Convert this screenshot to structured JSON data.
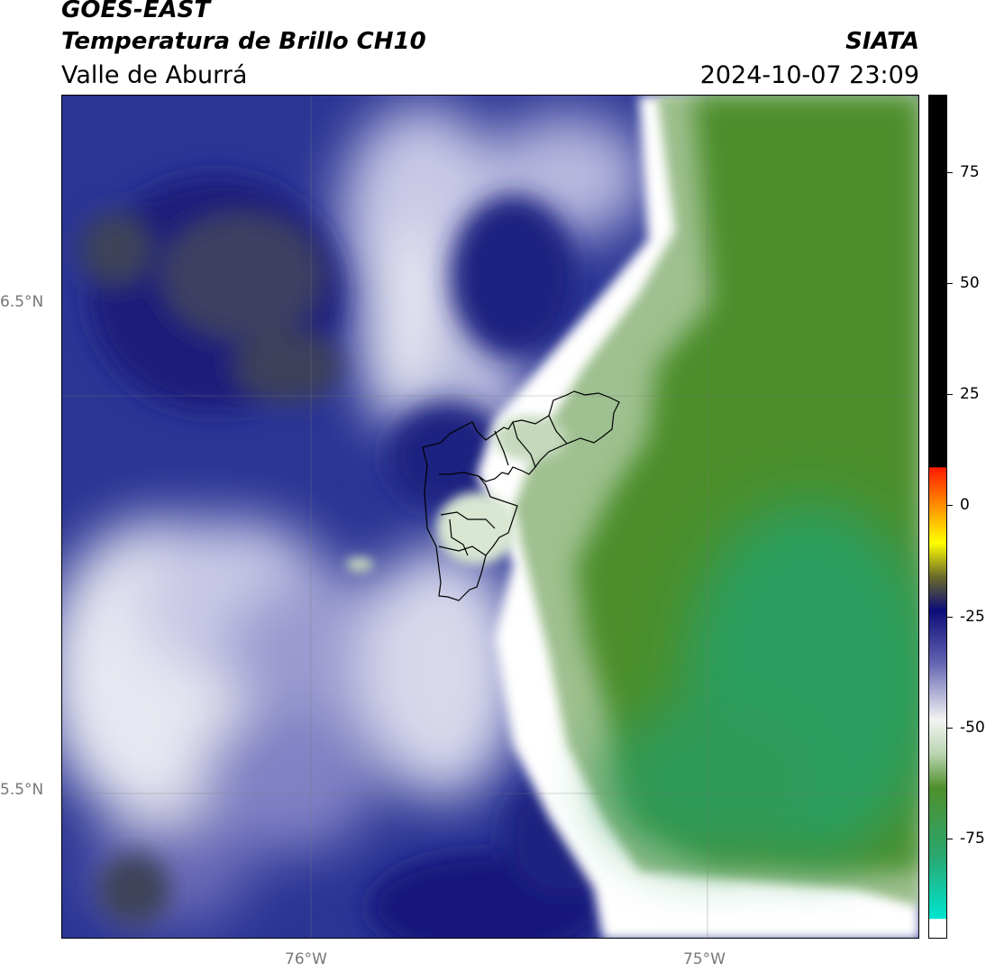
{
  "header": {
    "line1": "GOES-EAST",
    "line2": "Temperatura de Brillo CH10",
    "line3": "Valle de Aburrá",
    "org": "SIATA",
    "datetime": "2024-10-07 23:09"
  },
  "map": {
    "lat_labels": [
      "6.5°N",
      "5.5°N"
    ],
    "lon_labels": [
      "76°W",
      "75°W"
    ]
  },
  "colorbar": {
    "labels": [
      "75",
      "50",
      "25",
      "0",
      "-25",
      "-50",
      "-75"
    ],
    "colors": {
      "black": "#000000",
      "red": "#ff2000",
      "orange": "#ff8c00",
      "yellow": "#ffff00",
      "olive": "#6b6b2a",
      "navy": "#0c0c78",
      "blue_grey": "#8a8ac8",
      "white": "#f2f2f2",
      "light_green": "#b9d4b0",
      "green": "#4f8f2c",
      "teal": "#2aa66e",
      "cyan": "#00e5d0"
    }
  }
}
